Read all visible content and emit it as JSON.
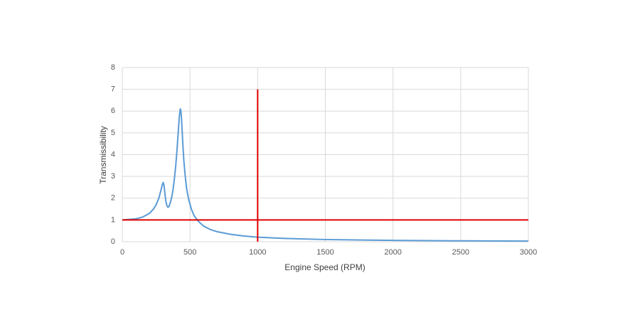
{
  "chart_data": {
    "type": "line",
    "x_label": "Engine Speed (RPM)",
    "y_label": "Transmissibility",
    "xlim": [
      0,
      3000
    ],
    "xticks": [
      0,
      500,
      1000,
      1500,
      2000,
      2500,
      3000
    ],
    "ylim": [
      0,
      8
    ],
    "yticks": [
      0,
      1,
      2,
      3,
      4,
      5,
      6,
      7,
      8
    ],
    "grid": true,
    "series": [
      {
        "color": "#5b9bd5",
        "x": [
          0,
          100,
          150,
          200,
          230,
          250,
          270,
          285,
          295,
          302,
          308,
          315,
          322,
          330,
          338,
          345,
          355,
          365,
          375,
          385,
          395,
          405,
          415,
          422,
          428,
          432,
          437,
          442,
          448,
          455,
          465,
          475,
          490,
          510,
          530,
          560,
          600,
          650,
          700,
          800,
          900,
          1000,
          1200,
          1500,
          2000,
          2500,
          3000
        ],
        "values": [
          1.0,
          1.05,
          1.13,
          1.3,
          1.5,
          1.7,
          2.0,
          2.35,
          2.6,
          2.72,
          2.6,
          2.2,
          1.85,
          1.65,
          1.58,
          1.62,
          1.8,
          2.05,
          2.4,
          2.9,
          3.5,
          4.3,
          5.2,
          5.8,
          6.1,
          6.05,
          5.7,
          5.1,
          4.4,
          3.7,
          3.0,
          2.45,
          1.95,
          1.5,
          1.2,
          0.95,
          0.72,
          0.56,
          0.46,
          0.34,
          0.26,
          0.21,
          0.15,
          0.1,
          0.06,
          0.04,
          0.03
        ]
      },
      {
        "color": "#e00000",
        "x": [
          0,
          3000
        ],
        "values": [
          1,
          1
        ]
      },
      {
        "color": "#e00000",
        "x": [
          1000,
          1000
        ],
        "values": [
          0,
          7
        ]
      }
    ]
  }
}
